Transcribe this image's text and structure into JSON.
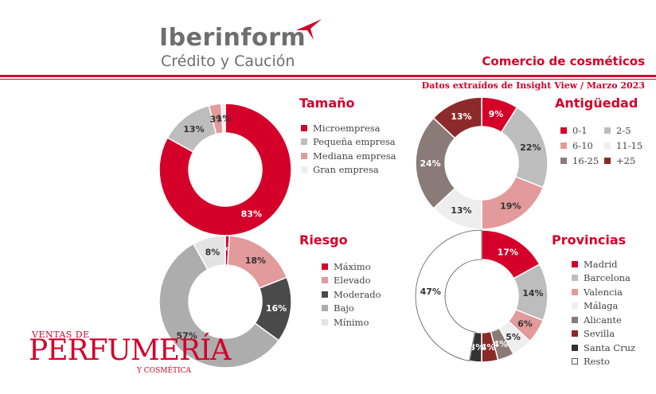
{
  "header": {
    "brand": "Iberinform",
    "subtitle": "Crédito y Caución",
    "title": "Comercio de cosméticos",
    "source": "Datos extraídos de Insight View / Marzo 2023"
  },
  "footer_logo": {
    "line_top": "VENTAS DE",
    "line_main": "PERFUMERÍA",
    "line_bottom": "Y COSMÉTICA"
  },
  "colors": {
    "accent": "#d4002a"
  },
  "chart_data": [
    {
      "type": "pie",
      "id": "tamano",
      "title": "Tamaño",
      "categories": [
        "Microempresa",
        "Pequeña empresa",
        "Mediana empresa",
        "Gran empresa"
      ],
      "values": [
        83,
        13,
        3,
        1
      ],
      "labels": [
        "83%",
        "13%",
        "3%",
        "1%"
      ],
      "colors": [
        "#d4002a",
        "#bdbdbd",
        "#e39a9a",
        "#eeeeee"
      ]
    },
    {
      "type": "pie",
      "id": "antiguedad",
      "title": "Antigüedad",
      "categories": [
        "0-1",
        "2-5",
        "6-10",
        "11-15",
        "16-25",
        "+25"
      ],
      "values": [
        9,
        22,
        19,
        13,
        24,
        13
      ],
      "labels": [
        "9%",
        "22%",
        "19%",
        "13%",
        "24%",
        "13%"
      ],
      "colors": [
        "#d4002a",
        "#bdbdbd",
        "#e39a9a",
        "#eeeeee",
        "#8a7b78",
        "#8c2a2a"
      ],
      "legend_layout": "two-columns"
    },
    {
      "type": "pie",
      "id": "riesgo",
      "title": "Riesgo",
      "categories": [
        "Máximo",
        "Elevado",
        "Moderado",
        "Bajo",
        "Mínimo"
      ],
      "values": [
        1,
        18,
        16,
        57,
        8
      ],
      "labels": [
        "1%",
        "18%",
        "16%",
        "57%",
        "8%"
      ],
      "colors": [
        "#d4002a",
        "#e39a9a",
        "#4a4a4a",
        "#adadad",
        "#e3e3e3"
      ]
    },
    {
      "type": "pie",
      "id": "provincias",
      "title": "Provincias",
      "categories": [
        "Madrid",
        "Barcelona",
        "Valencia",
        "Málaga",
        "Alicante",
        "Sevilla",
        "Santa Cruz",
        "Resto"
      ],
      "values": [
        17,
        14,
        6,
        5,
        4,
        4,
        3,
        47
      ],
      "labels": [
        "17%",
        "14%",
        "6%",
        "5%",
        "4%",
        "4%",
        "3%",
        "47%"
      ],
      "colors": [
        "#d4002a",
        "#bdbdbd",
        "#e39a9a",
        "#eeeeee",
        "#8a7b78",
        "#8c2a2a",
        "#333333",
        "#ffffff"
      ]
    }
  ]
}
